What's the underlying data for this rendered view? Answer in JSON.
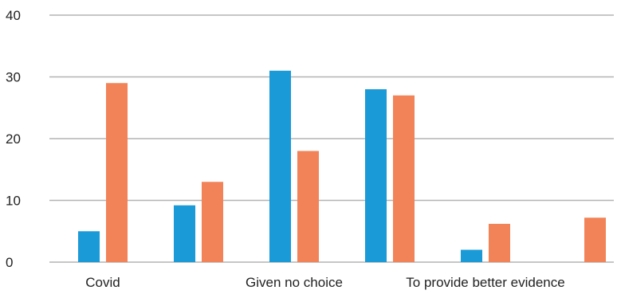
{
  "chart_data": {
    "type": "bar",
    "title": "",
    "xlabel": "",
    "ylabel": "",
    "ylim": [
      0,
      40
    ],
    "yticks": [
      0,
      10,
      20,
      30,
      40
    ],
    "grid": true,
    "categories": [
      "Covid",
      "",
      "Given no choice",
      "",
      "To provide better evidence",
      ""
    ],
    "series": [
      {
        "color": "#1a9ad6",
        "values": [
          5,
          9.2,
          31,
          28,
          2,
          0
        ]
      },
      {
        "color": "#f28358",
        "values": [
          29,
          13,
          18,
          27,
          6.2,
          7.2
        ]
      }
    ]
  }
}
